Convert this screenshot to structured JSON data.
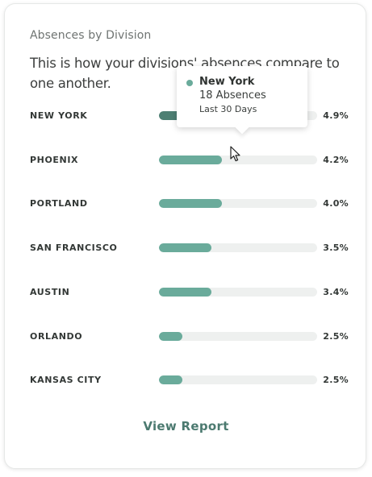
{
  "card": {
    "subtitle": "Absences by Division",
    "headline": "This is how your divisions' absences compare to one another.",
    "view_report_label": "View Report"
  },
  "divisions": [
    {
      "label": "NEW YORK",
      "value_label": "4.9%",
      "percent": 4.9,
      "fill_fraction": 0.2,
      "highlighted": true
    },
    {
      "label": "PHOENIX",
      "value_label": "4.2%",
      "percent": 4.2,
      "fill_fraction": 0.4,
      "highlighted": false
    },
    {
      "label": "PORTLAND",
      "value_label": "4.0%",
      "percent": 4.0,
      "fill_fraction": 0.4,
      "highlighted": false
    },
    {
      "label": "SAN FRANCISCO",
      "value_label": "3.5%",
      "percent": 3.5,
      "fill_fraction": 0.33,
      "highlighted": false
    },
    {
      "label": "AUSTIN",
      "value_label": "3.4%",
      "percent": 3.4,
      "fill_fraction": 0.33,
      "highlighted": false
    },
    {
      "label": "ORLANDO",
      "value_label": "2.5%",
      "percent": 2.5,
      "fill_fraction": 0.15,
      "highlighted": false
    },
    {
      "label": "KANSAS CITY",
      "value_label": "2.5%",
      "percent": 2.5,
      "fill_fraction": 0.15,
      "highlighted": false
    }
  ],
  "tooltip": {
    "title": "New York",
    "count": "18 Absences",
    "period": "Last 30 Days"
  },
  "colors": {
    "bar_fill": "#6aab9b",
    "bar_fill_highlight": "#4d7f73",
    "bar_track": "#eef0ef",
    "accent_text": "#4c7a70",
    "tooltip_dot": "#6aab9b"
  },
  "icons": {
    "cursor": "arrow-cursor-icon",
    "tooltip_marker": "dot-icon"
  }
}
